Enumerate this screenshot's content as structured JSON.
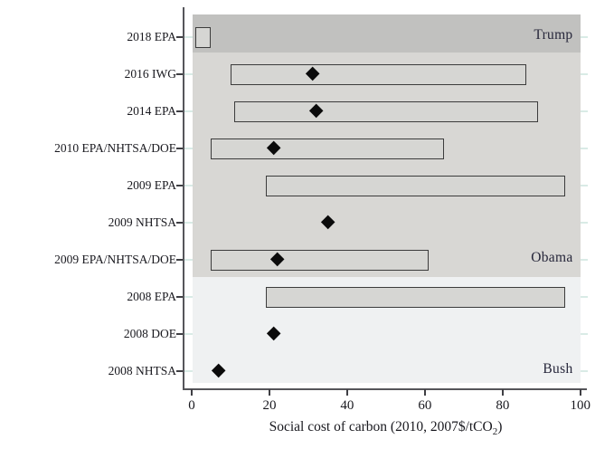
{
  "style": {
    "background": "#ffffff",
    "axis_color": "#55555a",
    "tick_color": "#3f3f44",
    "grid_color": "#d9ebe6",
    "text_color": "#19191f",
    "admin_text_color": "#26263a",
    "bar_fill": "#d6d6d3",
    "bar_border": "#3c3c3c",
    "marker_color": "#0b0b0b"
  },
  "chart_data": {
    "type": "bar",
    "orientation": "horizontal",
    "title": "",
    "xlabel": "Social cost of carbon (2010, 2007$/tCO₂)",
    "xlabel_parts": {
      "main": "Social cost of carbon (2010, 2007$/tCO",
      "sub": "2",
      "close": ")"
    },
    "xlim": [
      0,
      100
    ],
    "x_ticks": [
      "0",
      "20",
      "40",
      "60",
      "80",
      "100"
    ],
    "legend": "none",
    "grid": "light teal horizontal category gridlines peeking outside shaded administration bands",
    "categories": [
      "2018 EPA",
      "2016 IWG",
      "2014 EPA",
      "2010 EPA/NHTSA/DOE",
      "2009 EPA",
      "2009 NHTSA",
      "2009 EPA/NHTSA/DOE",
      "2008 EPA",
      "2008 DOE",
      "2008 NHTSA"
    ],
    "rows": [
      {
        "label": "2018 EPA",
        "range": [
          1,
          5
        ],
        "central": null,
        "administration": "Trump"
      },
      {
        "label": "2016 IWG",
        "range": [
          10,
          86
        ],
        "central": 31,
        "administration": "Obama"
      },
      {
        "label": "2014 EPA",
        "range": [
          11,
          89
        ],
        "central": 32,
        "administration": "Obama"
      },
      {
        "label": "2010 EPA/NHTSA/DOE",
        "range": [
          5,
          65
        ],
        "central": 21,
        "administration": "Obama"
      },
      {
        "label": "2009 EPA",
        "range": [
          19,
          96
        ],
        "central": null,
        "administration": "Obama"
      },
      {
        "label": "2009 NHTSA",
        "range": null,
        "central": 35,
        "administration": "Obama"
      },
      {
        "label": "2009 EPA/NHTSA/DOE",
        "range": [
          5,
          61
        ],
        "central": 22,
        "administration": "Obama"
      },
      {
        "label": "2008 EPA",
        "range": [
          19,
          96
        ],
        "central": null,
        "administration": "Bush"
      },
      {
        "label": "2008 DOE",
        "range": null,
        "central": 21,
        "administration": "Bush"
      },
      {
        "label": "2008 NHTSA",
        "range": null,
        "central": 7,
        "administration": "Bush"
      }
    ],
    "bands": [
      {
        "label": "Trump",
        "row_start": 0,
        "row_end": 0,
        "label_row": 0,
        "color": "#c1c1bf"
      },
      {
        "label": "Obama",
        "row_start": 1,
        "row_end": 6,
        "label_row": 6,
        "color": "#d8d7d4"
      },
      {
        "label": "Bush",
        "row_start": 7,
        "row_end": 9,
        "label_row": 9,
        "color": "#eff1f2"
      }
    ],
    "series": [
      {
        "name": "estimate range (bar)",
        "values": [
          [
            1,
            5
          ],
          [
            10,
            86
          ],
          [
            11,
            89
          ],
          [
            5,
            65
          ],
          [
            19,
            96
          ],
          null,
          [
            5,
            61
          ],
          [
            19,
            96
          ],
          null,
          null
        ]
      },
      {
        "name": "central estimate (diamond)",
        "values": [
          null,
          31,
          32,
          21,
          null,
          35,
          22,
          null,
          21,
          7
        ]
      }
    ]
  }
}
